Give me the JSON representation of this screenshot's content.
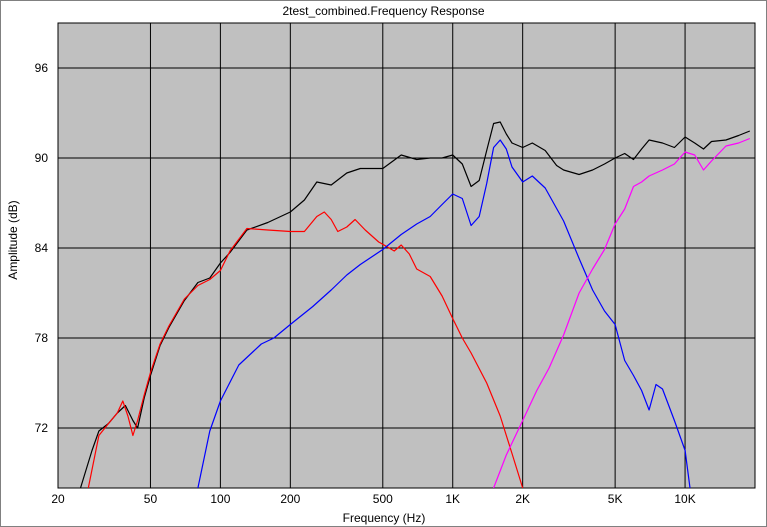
{
  "chart_data": {
    "type": "line",
    "title": "2test_combined.Frequency Response",
    "xlabel": "Frequency (Hz)",
    "ylabel": "Amplitude (dB)",
    "xscale": "log",
    "xlim": [
      20,
      20000
    ],
    "ylim": [
      68,
      99
    ],
    "grid": true,
    "plot_background": "#c0c0c0",
    "x_ticks": [
      {
        "value": 20,
        "label": "20"
      },
      {
        "value": 50,
        "label": "50"
      },
      {
        "value": 100,
        "label": "100"
      },
      {
        "value": 200,
        "label": "200"
      },
      {
        "value": 500,
        "label": "500"
      },
      {
        "value": 1000,
        "label": "1K"
      },
      {
        "value": 2000,
        "label": "2K"
      },
      {
        "value": 5000,
        "label": "5K"
      },
      {
        "value": 10000,
        "label": "10K"
      }
    ],
    "y_ticks": [
      {
        "value": 72,
        "label": "72"
      },
      {
        "value": 78,
        "label": "78"
      },
      {
        "value": 84,
        "label": "84"
      },
      {
        "value": 90,
        "label": "90"
      },
      {
        "value": 96,
        "label": "96"
      }
    ],
    "series": [
      {
        "color": "#000000",
        "points": [
          [
            25,
            68
          ],
          [
            28,
            70.5
          ],
          [
            30,
            71.8
          ],
          [
            33,
            72.3
          ],
          [
            36,
            73
          ],
          [
            39,
            73.5
          ],
          [
            42,
            72.5
          ],
          [
            44,
            72
          ],
          [
            47,
            74
          ],
          [
            50,
            75.5
          ],
          [
            55,
            77.5
          ],
          [
            60,
            78.7
          ],
          [
            70,
            80.5
          ],
          [
            80,
            81.7
          ],
          [
            90,
            82
          ],
          [
            100,
            83
          ],
          [
            110,
            83.7
          ],
          [
            130,
            85.2
          ],
          [
            160,
            85.7
          ],
          [
            200,
            86.4
          ],
          [
            230,
            87.2
          ],
          [
            260,
            88.4
          ],
          [
            300,
            88.2
          ],
          [
            350,
            89
          ],
          [
            400,
            89.3
          ],
          [
            500,
            89.3
          ],
          [
            600,
            90.2
          ],
          [
            700,
            89.9
          ],
          [
            800,
            90
          ],
          [
            900,
            90
          ],
          [
            1000,
            90.2
          ],
          [
            1100,
            89.6
          ],
          [
            1200,
            88.1
          ],
          [
            1300,
            88.5
          ],
          [
            1400,
            90.5
          ],
          [
            1500,
            92.3
          ],
          [
            1600,
            92.4
          ],
          [
            1700,
            91.6
          ],
          [
            1800,
            91
          ],
          [
            2000,
            90.7
          ],
          [
            2200,
            91
          ],
          [
            2500,
            90.5
          ],
          [
            2800,
            89.5
          ],
          [
            3000,
            89.2
          ],
          [
            3500,
            88.9
          ],
          [
            4000,
            89.2
          ],
          [
            4500,
            89.6
          ],
          [
            5000,
            90
          ],
          [
            5500,
            90.3
          ],
          [
            6000,
            89.9
          ],
          [
            6500,
            90.6
          ],
          [
            7000,
            91.2
          ],
          [
            8000,
            91
          ],
          [
            9000,
            90.7
          ],
          [
            10000,
            91.4
          ],
          [
            11000,
            91
          ],
          [
            12000,
            90.6
          ],
          [
            13000,
            91.1
          ],
          [
            15000,
            91.2
          ],
          [
            17000,
            91.5
          ],
          [
            19000,
            91.8
          ]
        ]
      },
      {
        "color": "#ff0000",
        "points": [
          [
            27,
            68
          ],
          [
            30,
            71.5
          ],
          [
            33,
            72.3
          ],
          [
            36,
            73
          ],
          [
            38,
            73.8
          ],
          [
            40,
            72.8
          ],
          [
            42,
            71.5
          ],
          [
            44,
            72.5
          ],
          [
            47,
            74.2
          ],
          [
            50,
            75.7
          ],
          [
            55,
            77.6
          ],
          [
            60,
            78.8
          ],
          [
            70,
            80.6
          ],
          [
            80,
            81.5
          ],
          [
            90,
            81.9
          ],
          [
            100,
            82.5
          ],
          [
            110,
            83.8
          ],
          [
            130,
            85.3
          ],
          [
            160,
            85.2
          ],
          [
            200,
            85.1
          ],
          [
            230,
            85.1
          ],
          [
            260,
            86.1
          ],
          [
            280,
            86.4
          ],
          [
            300,
            85.9
          ],
          [
            320,
            85.1
          ],
          [
            350,
            85.4
          ],
          [
            380,
            85.9
          ],
          [
            420,
            85.2
          ],
          [
            480,
            84.4
          ],
          [
            520,
            84.1
          ],
          [
            560,
            83.8
          ],
          [
            600,
            84.2
          ],
          [
            650,
            83.6
          ],
          [
            700,
            82.6
          ],
          [
            800,
            82.1
          ],
          [
            900,
            80.8
          ],
          [
            1000,
            79.3
          ],
          [
            1100,
            78
          ],
          [
            1200,
            77
          ],
          [
            1400,
            75
          ],
          [
            1600,
            72.8
          ],
          [
            1800,
            70.3
          ],
          [
            2000,
            68
          ]
        ]
      },
      {
        "color": "#0000ff",
        "points": [
          [
            80,
            68
          ],
          [
            90,
            71.8
          ],
          [
            100,
            73.8
          ],
          [
            120,
            76.2
          ],
          [
            150,
            77.6
          ],
          [
            170,
            78
          ],
          [
            200,
            78.9
          ],
          [
            250,
            80.1
          ],
          [
            300,
            81.2
          ],
          [
            350,
            82.2
          ],
          [
            400,
            82.9
          ],
          [
            500,
            83.9
          ],
          [
            600,
            84.9
          ],
          [
            700,
            85.6
          ],
          [
            800,
            86.1
          ],
          [
            900,
            86.9
          ],
          [
            1000,
            87.6
          ],
          [
            1100,
            87.3
          ],
          [
            1200,
            85.5
          ],
          [
            1300,
            86.1
          ],
          [
            1400,
            88.3
          ],
          [
            1500,
            90.7
          ],
          [
            1600,
            91.2
          ],
          [
            1700,
            90.6
          ],
          [
            1800,
            89.4
          ],
          [
            2000,
            88.4
          ],
          [
            2200,
            88.8
          ],
          [
            2500,
            88
          ],
          [
            3000,
            85.8
          ],
          [
            3500,
            83.3
          ],
          [
            4000,
            81.2
          ],
          [
            4500,
            79.8
          ],
          [
            5000,
            78.9
          ],
          [
            5500,
            76.5
          ],
          [
            6000,
            75.5
          ],
          [
            6500,
            74.5
          ],
          [
            7000,
            73.2
          ],
          [
            7500,
            74.9
          ],
          [
            8000,
            74.6
          ],
          [
            9000,
            72.5
          ],
          [
            10000,
            70.5
          ],
          [
            10500,
            68
          ]
        ]
      },
      {
        "color": "#ff00ff",
        "points": [
          [
            1500,
            68
          ],
          [
            1700,
            70.2
          ],
          [
            2000,
            72.5
          ],
          [
            2300,
            74.5
          ],
          [
            2600,
            76
          ],
          [
            3000,
            78.2
          ],
          [
            3500,
            81
          ],
          [
            4000,
            82.6
          ],
          [
            4500,
            83.9
          ],
          [
            5000,
            85.6
          ],
          [
            5500,
            86.6
          ],
          [
            6000,
            88.1
          ],
          [
            6500,
            88.4
          ],
          [
            7000,
            88.8
          ],
          [
            8000,
            89.2
          ],
          [
            9000,
            89.6
          ],
          [
            10000,
            90.4
          ],
          [
            11000,
            90.2
          ],
          [
            12000,
            89.2
          ],
          [
            13000,
            89.8
          ],
          [
            15000,
            90.8
          ],
          [
            17000,
            91
          ],
          [
            19000,
            91.3
          ]
        ]
      }
    ]
  }
}
